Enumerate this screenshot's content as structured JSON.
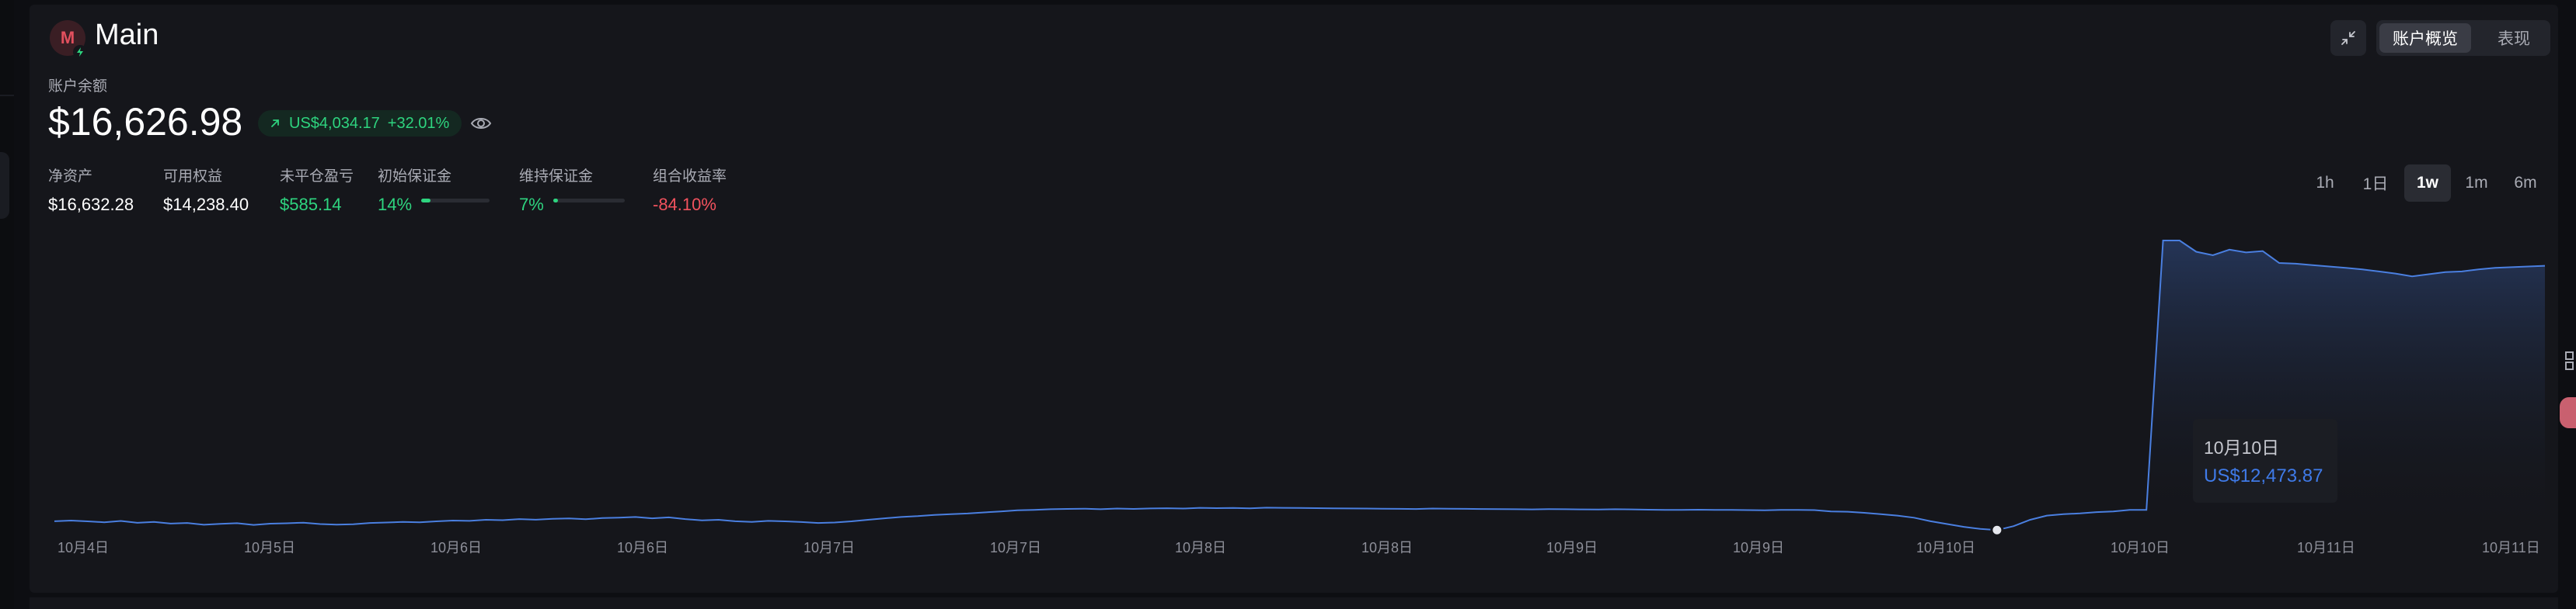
{
  "account": {
    "avatar_letter": "M",
    "name": "Main",
    "balance_label": "账户余额",
    "balance": "$16,626.98",
    "pnl_amount": "US$4,034.17",
    "pnl_percent": "+32.01%"
  },
  "stats": [
    {
      "label": "净资产",
      "value": "$16,632.28",
      "tone": "neutral"
    },
    {
      "label": "可用权益",
      "value": "$14,238.40",
      "tone": "neutral"
    },
    {
      "label": "未平仓盈亏",
      "value": "$585.14",
      "tone": "positive"
    },
    {
      "label": "初始保证金",
      "value": "14%",
      "tone": "positive",
      "fill": 0.14
    },
    {
      "label": "维持保证金",
      "value": "7%",
      "tone": "positive",
      "fill": 0.07
    },
    {
      "label": "组合收益率",
      "value": "-84.10%",
      "tone": "negative"
    }
  ],
  "header_tabs": [
    {
      "label": "账户概览",
      "active": true
    },
    {
      "label": "表现",
      "active": false
    }
  ],
  "time_ranges": [
    {
      "label": "1h",
      "active": false
    },
    {
      "label": "1日",
      "active": false
    },
    {
      "label": "1w",
      "active": true
    },
    {
      "label": "1m",
      "active": false
    },
    {
      "label": "6m",
      "active": false
    }
  ],
  "tooltip": {
    "date": "10月10日",
    "value": "US$12,473.87"
  },
  "icons": {
    "trend": "arrow-up-right-icon",
    "eye": "eye-icon",
    "minimize": "minimize-icon",
    "badge": "lightning-icon"
  },
  "colors": {
    "line": "#4a7fe0",
    "positive": "#2ed47f",
    "negative": "#f2525e",
    "avatar": "#e2505e"
  },
  "chart_data": {
    "type": "area",
    "x_tick_labels": [
      "10月4日",
      "10月5日",
      "10月6日",
      "10月6日",
      "10月7日",
      "10月7日",
      "10月8日",
      "10月8日",
      "10月9日",
      "10月9日",
      "10月10日",
      "10月10日",
      "10月11日",
      "10月11日"
    ],
    "series": [
      {
        "values": [
          12600,
          12610,
          12598,
          12585,
          12604,
          12578,
          12590,
          12567,
          12575,
          12550,
          12563,
          12572,
          12548,
          12565,
          12571,
          12580,
          12560,
          12552,
          12558,
          12575,
          12582,
          12590,
          12585,
          12598,
          12610,
          12605,
          12620,
          12615,
          12630,
          12622,
          12635,
          12640,
          12628,
          12645,
          12650,
          12660,
          12642,
          12655,
          12630,
          12612,
          12620,
          12600,
          12590,
          12605,
          12598,
          12588,
          12575,
          12582,
          12598,
          12620,
          12642,
          12660,
          12672,
          12690,
          12700,
          12710,
          12725,
          12740,
          12755,
          12762,
          12770,
          12775,
          12778,
          12770,
          12780,
          12775,
          12782,
          12785,
          12780,
          12790,
          12786,
          12788,
          12784,
          12792,
          12790,
          12788,
          12786,
          12784,
          12782,
          12780,
          12778,
          12776,
          12774,
          12780,
          12778,
          12776,
          12774,
          12772,
          12770,
          12768,
          12772,
          12770,
          12768,
          12766,
          12770,
          12768,
          12764,
          12762,
          12760,
          12764,
          12762,
          12760,
          12758,
          12756,
          12762,
          12760,
          12758,
          12740,
          12735,
          12720,
          12700,
          12680,
          12650,
          12600,
          12560,
          12520,
          12490,
          12474,
          12530,
          12620,
          12680,
          12700,
          12712,
          12730,
          12740,
          12760,
          12760,
          16590,
          16590,
          16430,
          16380,
          16460,
          16420,
          16440,
          16270,
          16260,
          16240,
          16220,
          16200,
          16180,
          16150,
          16120,
          16080,
          16110,
          16140,
          16150,
          16180,
          16200,
          16210,
          16220,
          16230
        ]
      }
    ],
    "highlight": {
      "label": "10月10日",
      "value": 12473.87
    },
    "grid": false,
    "legend": "none"
  }
}
